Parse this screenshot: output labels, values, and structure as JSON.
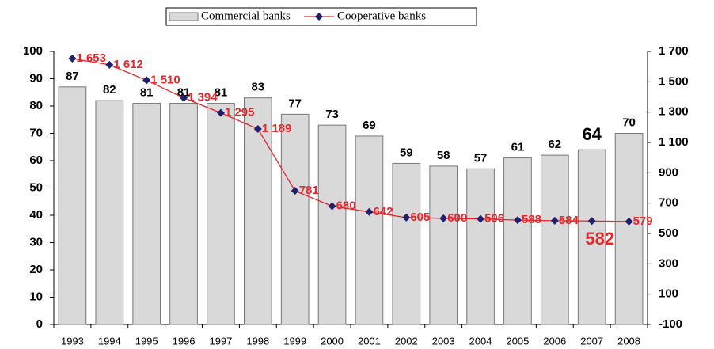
{
  "chart_data": {
    "type": "bar",
    "categories": [
      "1993",
      "1994",
      "1995",
      "1996",
      "1997",
      "1998",
      "1999",
      "2000",
      "2001",
      "2002",
      "2003",
      "2004",
      "2005",
      "2006",
      "2007",
      "2008"
    ],
    "series": [
      {
        "name": "Commercial banks",
        "type": "bar",
        "color": "#d9d9d9",
        "axis": "y",
        "values": [
          87,
          82,
          81,
          81,
          81,
          83,
          77,
          73,
          69,
          59,
          58,
          57,
          61,
          62,
          64,
          70
        ]
      },
      {
        "name": "Cooperative banks",
        "type": "line",
        "color": "#1f1f6e",
        "label_color": "#e8262a",
        "axis": "y2",
        "values": [
          1653,
          1612,
          1510,
          1394,
          1295,
          1189,
          781,
          680,
          642,
          605,
          600,
          596,
          588,
          584,
          582,
          579
        ],
        "value_labels": [
          "1 653",
          "1 612",
          "1 510",
          "1 394",
          "1 295",
          "1 189",
          "781",
          "680",
          "642",
          "605",
          "600",
          "596",
          "588",
          "584",
          "582",
          "579"
        ]
      }
    ],
    "ylim": [
      0,
      100
    ],
    "yticks": [
      0,
      10,
      20,
      30,
      40,
      50,
      60,
      70,
      80,
      90,
      100
    ],
    "y2lim": [
      -100,
      1700
    ],
    "y2ticks": [
      -100,
      100,
      300,
      500,
      700,
      900,
      {
        "value": 1100,
        "label": "1 100"
      },
      {
        "value": 1300,
        "label": "1 300"
      },
      {
        "value": 1500,
        "label": "1 500"
      },
      {
        "value": 1700,
        "label": "1 700"
      }
    ],
    "legend": "top"
  }
}
